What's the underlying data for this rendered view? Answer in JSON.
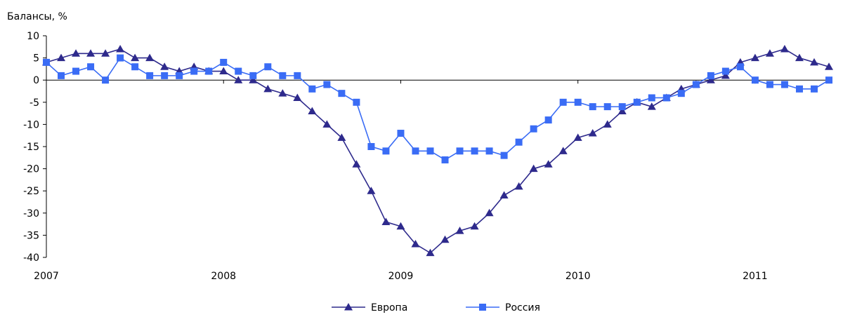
{
  "chart_data": {
    "type": "line",
    "title": "",
    "ylabel": "Балансы, %",
    "xlabel": "",
    "ylim": [
      -40,
      10
    ],
    "yticks": [
      10,
      5,
      0,
      -5,
      -10,
      -15,
      -20,
      -25,
      -30,
      -35,
      -40
    ],
    "xlim": [
      "2007-01",
      "2011-06"
    ],
    "xticks": [
      "2007",
      "2008",
      "2009",
      "2010",
      "2011"
    ],
    "grid": false,
    "legend_position": "bottom",
    "x": [
      "2007-01",
      "2007-02",
      "2007-03",
      "2007-04",
      "2007-05",
      "2007-06",
      "2007-07",
      "2007-08",
      "2007-09",
      "2007-10",
      "2007-11",
      "2007-12",
      "2008-01",
      "2008-02",
      "2008-03",
      "2008-04",
      "2008-05",
      "2008-06",
      "2008-07",
      "2008-08",
      "2008-09",
      "2008-10",
      "2008-11",
      "2008-12",
      "2009-01",
      "2009-02",
      "2009-03",
      "2009-04",
      "2009-05",
      "2009-06",
      "2009-07",
      "2009-08",
      "2009-09",
      "2009-10",
      "2009-11",
      "2009-12",
      "2010-01",
      "2010-02",
      "2010-03",
      "2010-04",
      "2010-05",
      "2010-06",
      "2010-07",
      "2010-08",
      "2010-09",
      "2010-10",
      "2010-11",
      "2010-12",
      "2011-01",
      "2011-02",
      "2011-03",
      "2011-04",
      "2011-05",
      "2011-06"
    ],
    "series": [
      {
        "name": "Европа",
        "color": "#2e2a8c",
        "marker": "triangle",
        "values": [
          4,
          5,
          6,
          6,
          6,
          7,
          5,
          5,
          3,
          2,
          3,
          2,
          2,
          0,
          0,
          -2,
          -3,
          -4,
          -7,
          -10,
          -13,
          -19,
          -25,
          -32,
          -33,
          -37,
          -39,
          -36,
          -34,
          -33,
          -30,
          -26,
          -24,
          -20,
          -19,
          -16,
          -13,
          -12,
          -10,
          -7,
          -5,
          -6,
          -4,
          -2,
          -1,
          0,
          1,
          4,
          5,
          6,
          7,
          5,
          4,
          3
        ]
      },
      {
        "name": "Россия",
        "color": "#3a6cf5",
        "marker": "square",
        "values": [
          4,
          1,
          2,
          3,
          0,
          5,
          3,
          1,
          1,
          1,
          2,
          2,
          4,
          2,
          1,
          3,
          1,
          1,
          -2,
          -1,
          -3,
          -5,
          -15,
          -16,
          -12,
          -16,
          -16,
          -18,
          -16,
          -16,
          -16,
          -17,
          -14,
          -11,
          -9,
          -5,
          -5,
          -6,
          -6,
          -6,
          -5,
          -4,
          -4,
          -3,
          -1,
          1,
          2,
          3,
          0,
          -1,
          -1,
          -2,
          -2,
          0
        ]
      }
    ]
  }
}
